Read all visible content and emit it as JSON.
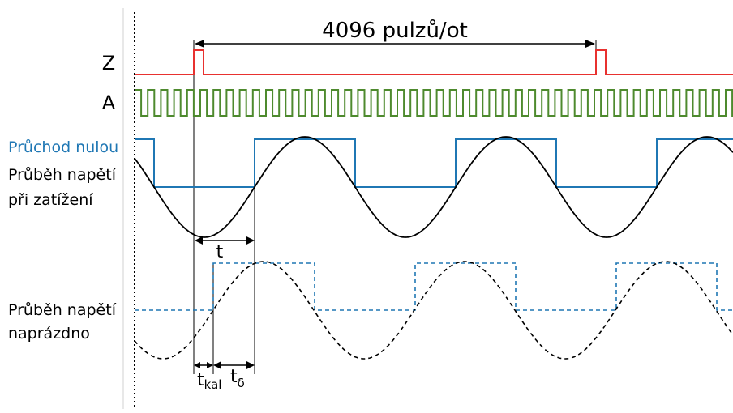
{
  "labels": {
    "pulses_per_rev": "4096 pulzů/ot",
    "z_channel": "Z",
    "a_channel": "A",
    "zero_crossing": "Průchod nulou",
    "load_voltage_line1": "Průběh napětí",
    "load_voltage_line2": "při zatížení",
    "noload_voltage_line1": "Průběh napětí",
    "noload_voltage_line2": "naprázdno",
    "t": "t",
    "t_kal_main": "t",
    "t_kal_sub": "kal",
    "t_delta_main": "t",
    "t_delta_sub": "δ"
  },
  "colors": {
    "z_signal": "#e8312f",
    "a_signal": "#4e8a2e",
    "zero_crossing": "#1f77b4",
    "waveform": "#000000"
  }
}
